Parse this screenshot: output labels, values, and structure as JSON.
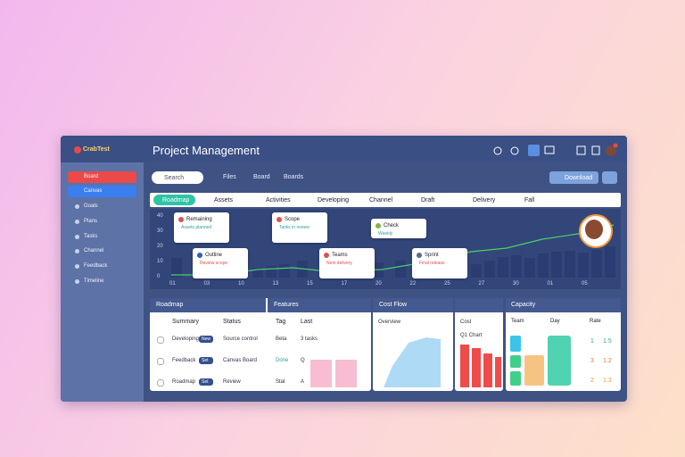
{
  "app": {
    "logo": "CrabTest",
    "title": "Project Management"
  },
  "sidebar": [
    "Board",
    "Canvas",
    "Goals",
    "Plans",
    "Tasks",
    "Channel",
    "Feedback",
    "Timeline"
  ],
  "toolbar": {
    "search": "Search",
    "tabs": [
      "Files",
      "Board",
      "Boards"
    ],
    "button": "Download"
  },
  "timeline": {
    "tag": "Roadmap",
    "columns": [
      "Assets",
      "Activities",
      "Developing",
      "Channel",
      "Draft",
      "Delivery",
      "Fall"
    ],
    "yticks": [
      "40",
      "30",
      "20",
      "10",
      "0"
    ],
    "xticks": [
      "01",
      "03",
      "10",
      "13",
      "15",
      "17",
      "20",
      "22",
      "25",
      "27",
      "30",
      "01",
      "05"
    ],
    "cards": [
      {
        "title": "Remaining",
        "note": "Assets planned"
      },
      {
        "title": "Outline",
        "note": "Review scope"
      },
      {
        "title": "Scope",
        "note": "Tasks in review"
      },
      {
        "title": "Teams",
        "note": "Next delivery"
      },
      {
        "title": "Check",
        "note": "Weekly"
      },
      {
        "title": "Sprint",
        "note": "Final release"
      }
    ]
  },
  "table": {
    "title": "Roadmap",
    "title2": "Features",
    "headers": [
      "Summary",
      "Status",
      "Tag",
      "Last"
    ],
    "rows": [
      [
        "Developing",
        "New",
        "Source control",
        "Beta",
        "3 tasks"
      ],
      [
        "Feedback",
        "Set",
        "Canvas Board",
        "Done",
        "Q"
      ],
      [
        "Roadmap",
        "Set",
        "Review",
        "Stat",
        "A"
      ]
    ]
  },
  "cost": {
    "title": "Cost Flow",
    "sub": "Overview"
  },
  "retention": {
    "title": "Cost",
    "badge": "Q1 Chart"
  },
  "capacity": {
    "title": "Capacity",
    "cols": [
      "Team",
      "Day",
      "Rate"
    ],
    "rows": [
      [
        "1",
        "1.5"
      ],
      [
        "3",
        "1.2"
      ],
      [
        "2",
        "1.3"
      ]
    ]
  }
}
